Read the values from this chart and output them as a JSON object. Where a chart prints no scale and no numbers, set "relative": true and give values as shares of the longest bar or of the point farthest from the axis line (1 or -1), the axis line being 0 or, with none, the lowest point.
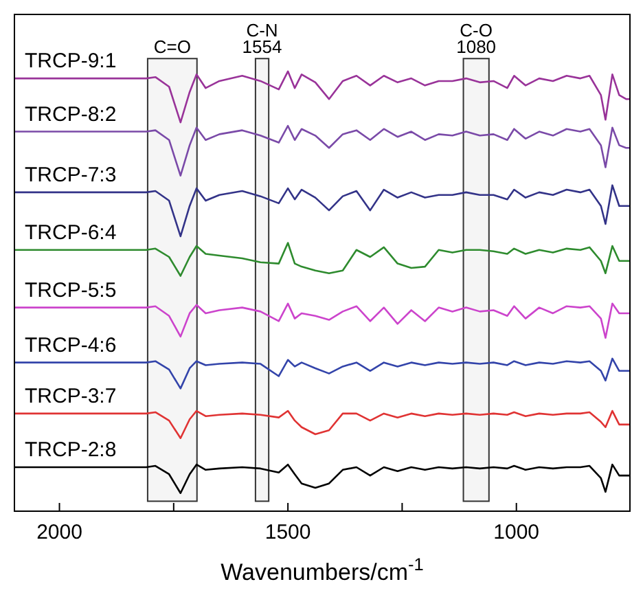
{
  "chart_data": {
    "type": "line",
    "relative": true,
    "xlabel": "Wavenumbers/cm$^{-1}$",
    "x": [
      2100,
      1900,
      1810,
      1790,
      1760,
      1735,
      1715,
      1700,
      1680,
      1650,
      1600,
      1560,
      1520,
      1500,
      1485,
      1470,
      1440,
      1410,
      1380,
      1350,
      1320,
      1290,
      1260,
      1230,
      1200,
      1170,
      1140,
      1110,
      1080,
      1050,
      1020,
      1005,
      980,
      950,
      920,
      890,
      860,
      840,
      815,
      805,
      790,
      775,
      760,
      750
    ],
    "xlim": [
      2100,
      750
    ],
    "xticks": [
      2000,
      {
        "value": 1750,
        "label": null
      },
      1500,
      {
        "value": 1250,
        "label": null
      },
      1000
    ],
    "marker": "none",
    "line_style": "solid",
    "series": [
      {
        "name": "TRCP-9:1",
        "color": "#993399",
        "values": [
          0.984,
          0.984,
          0.984,
          0.987,
          0.965,
          0.884,
          0.953,
          0.993,
          0.962,
          0.978,
          0.99,
          0.978,
          0.959,
          1.0,
          0.962,
          0.993,
          0.975,
          0.937,
          0.978,
          0.99,
          0.968,
          0.99,
          0.975,
          0.984,
          0.968,
          0.978,
          0.978,
          0.984,
          0.975,
          0.978,
          0.962,
          0.99,
          0.968,
          0.984,
          0.978,
          0.99,
          0.984,
          0.99,
          0.946,
          0.89,
          0.993,
          0.946,
          0.937,
          0.937
        ]
      },
      {
        "name": "TRCP-8:2",
        "color": "#7a4aa8",
        "values": [
          0.863,
          0.863,
          0.863,
          0.866,
          0.844,
          0.763,
          0.832,
          0.872,
          0.844,
          0.857,
          0.866,
          0.854,
          0.838,
          0.876,
          0.844,
          0.869,
          0.854,
          0.826,
          0.857,
          0.866,
          0.844,
          0.869,
          0.851,
          0.863,
          0.844,
          0.857,
          0.854,
          0.863,
          0.854,
          0.857,
          0.844,
          0.869,
          0.847,
          0.863,
          0.854,
          0.869,
          0.863,
          0.869,
          0.832,
          0.782,
          0.872,
          0.832,
          0.826,
          0.826
        ]
      },
      {
        "name": "TRCP-7:3",
        "color": "#333388",
        "values": [
          0.725,
          0.725,
          0.725,
          0.728,
          0.706,
          0.625,
          0.694,
          0.734,
          0.706,
          0.719,
          0.728,
          0.716,
          0.7,
          0.734,
          0.709,
          0.731,
          0.713,
          0.684,
          0.716,
          0.728,
          0.684,
          0.731,
          0.713,
          0.725,
          0.713,
          0.719,
          0.719,
          0.725,
          0.719,
          0.719,
          0.709,
          0.731,
          0.713,
          0.725,
          0.719,
          0.731,
          0.725,
          0.731,
          0.694,
          0.653,
          0.741,
          0.694,
          0.694,
          0.694
        ]
      },
      {
        "name": "TRCP-6:4",
        "color": "#2e8b2e",
        "values": [
          0.594,
          0.594,
          0.594,
          0.597,
          0.578,
          0.535,
          0.578,
          0.603,
          0.585,
          0.581,
          0.575,
          0.566,
          0.563,
          0.61,
          0.563,
          0.556,
          0.547,
          0.541,
          0.547,
          0.594,
          0.578,
          0.6,
          0.563,
          0.553,
          0.556,
          0.594,
          0.588,
          0.594,
          0.594,
          0.591,
          0.585,
          0.597,
          0.585,
          0.594,
          0.588,
          0.597,
          0.594,
          0.6,
          0.569,
          0.541,
          0.603,
          0.569,
          0.569,
          0.569
        ]
      },
      {
        "name": "TRCP-5:5",
        "color": "#cc44cc",
        "values": [
          0.463,
          0.463,
          0.463,
          0.466,
          0.444,
          0.397,
          0.45,
          0.469,
          0.45,
          0.457,
          0.463,
          0.454,
          0.432,
          0.472,
          0.438,
          0.45,
          0.444,
          0.435,
          0.454,
          0.466,
          0.432,
          0.463,
          0.426,
          0.457,
          0.432,
          0.463,
          0.454,
          0.463,
          0.454,
          0.457,
          0.444,
          0.466,
          0.438,
          0.463,
          0.45,
          0.466,
          0.463,
          0.466,
          0.438,
          0.394,
          0.472,
          0.45,
          0.45,
          0.45
        ]
      },
      {
        "name": "TRCP-4:6",
        "color": "#3344aa",
        "values": [
          0.338,
          0.338,
          0.338,
          0.341,
          0.322,
          0.279,
          0.325,
          0.341,
          0.332,
          0.335,
          0.338,
          0.335,
          0.307,
          0.344,
          0.329,
          0.338,
          0.325,
          0.313,
          0.329,
          0.338,
          0.319,
          0.338,
          0.329,
          0.338,
          0.332,
          0.338,
          0.335,
          0.338,
          0.335,
          0.338,
          0.332,
          0.341,
          0.332,
          0.338,
          0.335,
          0.341,
          0.338,
          0.341,
          0.319,
          0.297,
          0.347,
          0.319,
          0.319,
          0.319
        ]
      },
      {
        "name": "TRCP-3:7",
        "color": "#e03333",
        "values": [
          0.222,
          0.222,
          0.222,
          0.225,
          0.206,
          0.166,
          0.209,
          0.228,
          0.216,
          0.219,
          0.222,
          0.219,
          0.213,
          0.228,
          0.206,
          0.191,
          0.175,
          0.184,
          0.222,
          0.222,
          0.206,
          0.222,
          0.213,
          0.222,
          0.216,
          0.222,
          0.219,
          0.222,
          0.219,
          0.222,
          0.219,
          0.225,
          0.216,
          0.222,
          0.219,
          0.222,
          0.222,
          0.225,
          0.203,
          0.191,
          0.228,
          0.197,
          0.197,
          0.197
        ]
      },
      {
        "name": "TRCP-2:8",
        "color": "#000000",
        "values": [
          0.1,
          0.1,
          0.1,
          0.103,
          0.084,
          0.041,
          0.084,
          0.106,
          0.094,
          0.097,
          0.1,
          0.097,
          0.088,
          0.106,
          0.084,
          0.063,
          0.053,
          0.063,
          0.094,
          0.1,
          0.081,
          0.1,
          0.091,
          0.1,
          0.094,
          0.1,
          0.097,
          0.1,
          0.097,
          0.1,
          0.097,
          0.103,
          0.094,
          0.1,
          0.097,
          0.1,
          0.1,
          0.103,
          0.075,
          0.044,
          0.106,
          0.081,
          0.081,
          0.081
        ]
      }
    ],
    "bands": [
      {
        "axis": "x",
        "from": 1807,
        "to": 1699,
        "label": "C=O",
        "color": "#333333"
      },
      {
        "axis": "x",
        "from": 1571,
        "to": 1542,
        "label": "C-N\n1554",
        "color": "#333333"
      },
      {
        "axis": "x",
        "from": 1116,
        "to": 1060,
        "label": "C-O\n1080",
        "color": "#333333"
      }
    ]
  }
}
